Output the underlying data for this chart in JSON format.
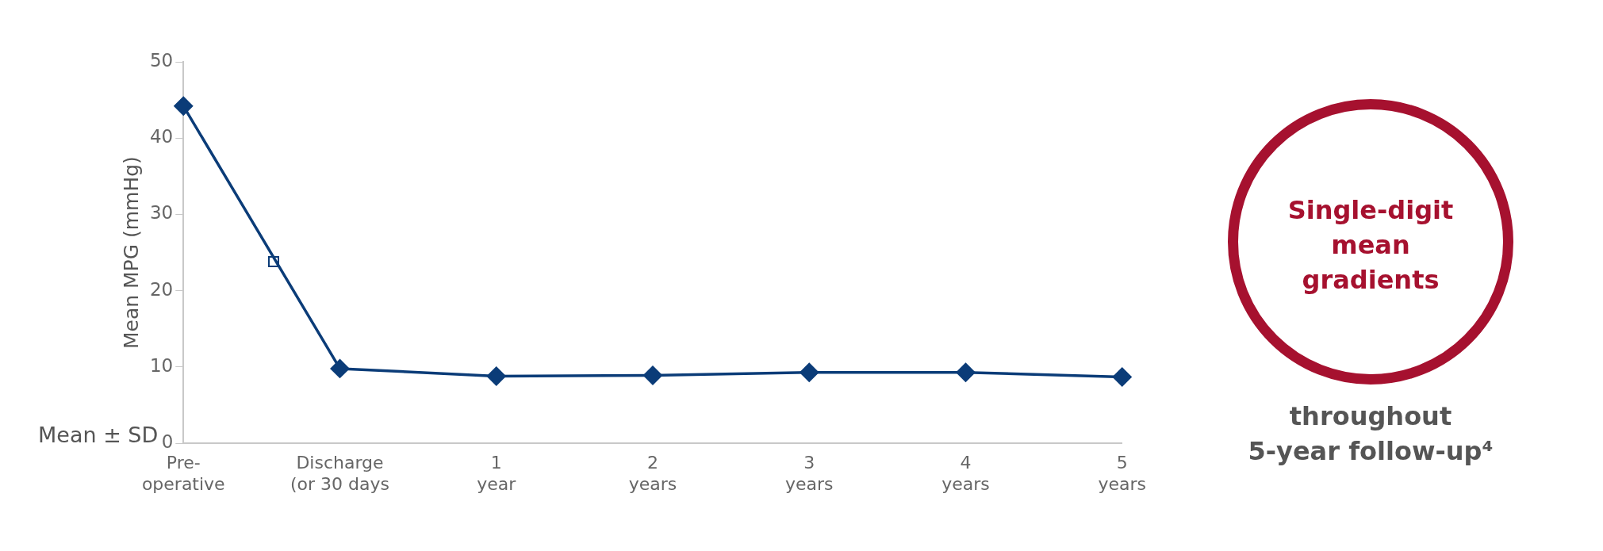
{
  "chart_data": {
    "type": "line",
    "ylabel": "Mean MPG (mmHg)",
    "categories": [
      "Pre-\noperative",
      "Discharge\n(or 30 days",
      "1\nyear",
      "2\nyears",
      "3\nyears",
      "4\nyears",
      "5\nyears"
    ],
    "series": [
      {
        "color": "#0b3c78",
        "values": [
          44.2,
          9.8,
          8.8,
          8.9,
          9.3,
          9.3,
          8.7
        ]
      }
    ],
    "ylim": [
      0,
      50
    ],
    "yticks": [
      0,
      10,
      20,
      30,
      40,
      50
    ],
    "grid": false,
    "legend": false,
    "marker": "diamond",
    "line_style": "solid",
    "annotations": [
      "Mean ± SD",
      "Single-digit\nmean\ngradients",
      "throughout\n5-year follow-up⁴"
    ]
  }
}
